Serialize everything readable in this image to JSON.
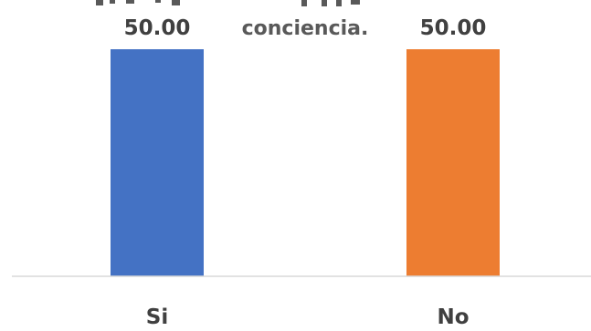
{
  "chart_data": {
    "type": "bar",
    "title_lines": [
      "conciencia."
    ],
    "categories": [
      "Si",
      "No"
    ],
    "values": [
      50.0,
      50.0
    ],
    "value_labels": [
      "50.00",
      "50.00"
    ],
    "colors": [
      "#4472C4",
      "#ED7D31"
    ],
    "ylim": [
      0,
      50
    ],
    "grid": false,
    "legend": "none",
    "xlabel": "",
    "ylabel": ""
  }
}
